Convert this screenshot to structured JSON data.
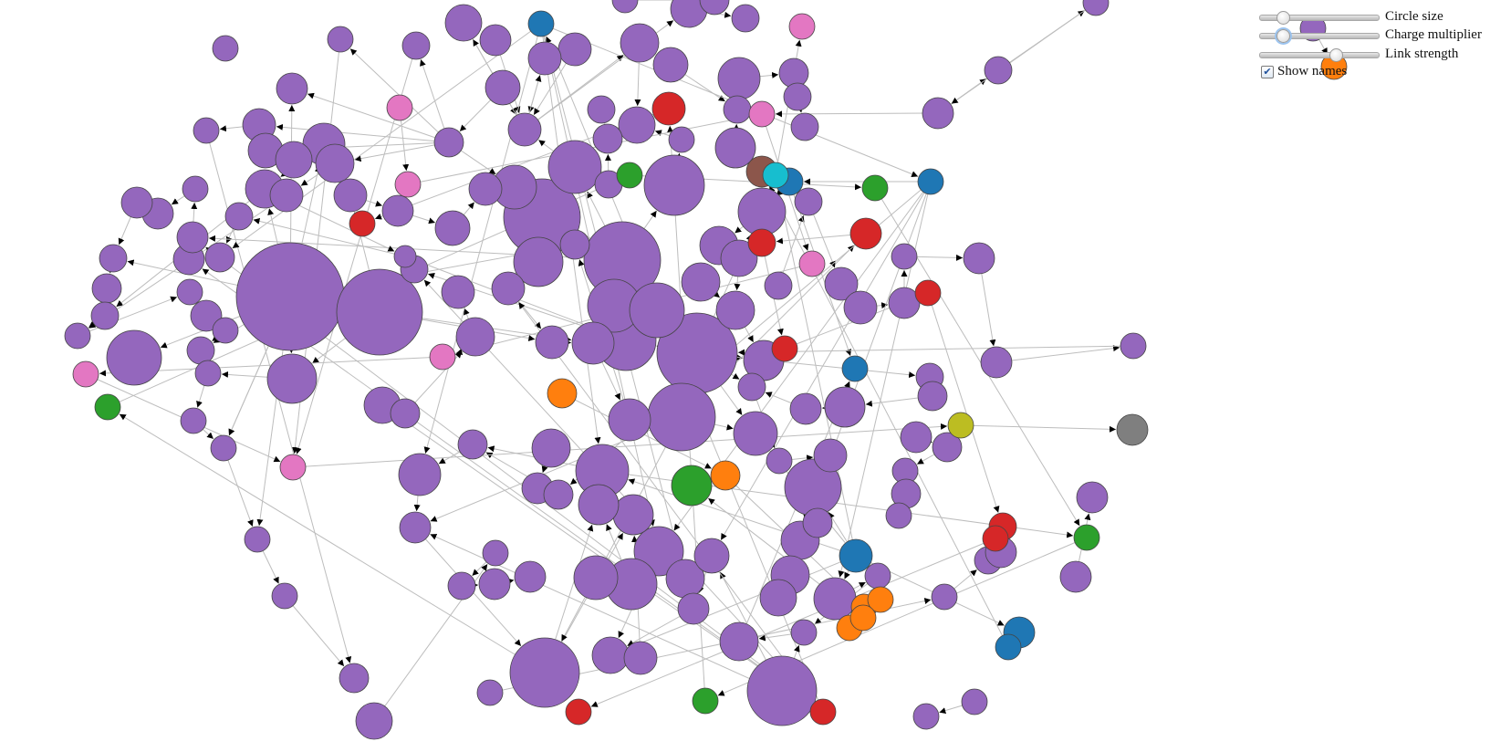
{
  "controls": {
    "circle_size": {
      "label": "Circle size",
      "value": 0.15
    },
    "charge_multiplier": {
      "label": "Charge multiplier",
      "value": 0.15
    },
    "link_strength": {
      "label": "Link strength",
      "value": 0.65
    },
    "show_names": {
      "label": "Show names",
      "checked": true
    }
  },
  "palette": {
    "purple": "#9467bd",
    "blue": "#1f77b4",
    "orange": "#ff7f0e",
    "green": "#2ca02c",
    "red": "#d62728",
    "brown": "#8c564b",
    "pink": "#e377c2",
    "gray": "#7f7f7f",
    "olive": "#bcbd22",
    "cyan": "#17becf",
    "link": "#bdbdbd"
  }
}
